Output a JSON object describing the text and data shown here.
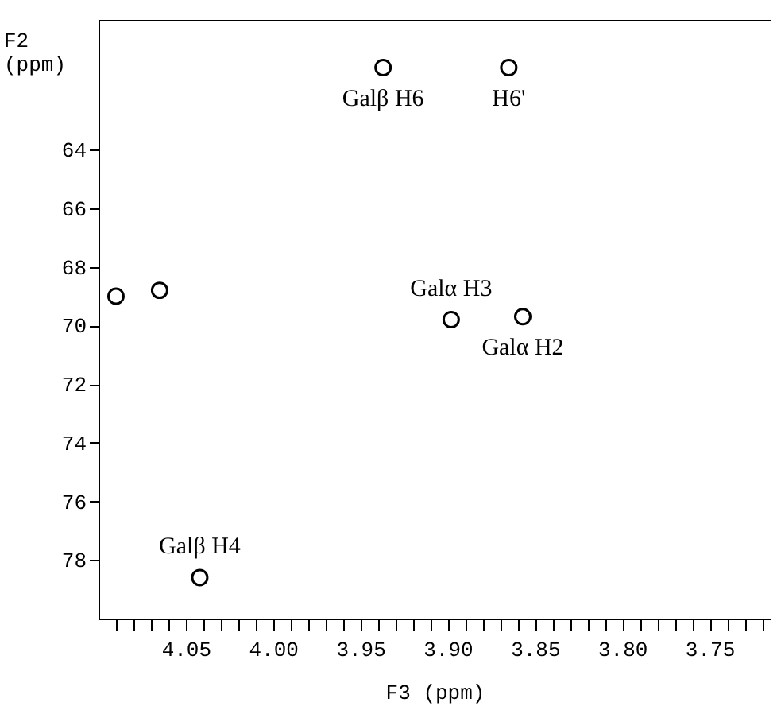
{
  "chart_data": {
    "type": "scatter",
    "xlabel": "F3 (ppm)",
    "ylabel": "F2 (ppm)",
    "x": [
      3.937,
      3.865,
      3.898,
      3.857,
      4.042,
      4.065,
      4.09
    ],
    "series": [
      {
        "color": "#000000",
        "values": [
          61.2,
          61.2,
          69.8,
          69.7,
          78.6,
          68.8,
          69.0
        ]
      }
    ],
    "marker": "circle",
    "xlim": [
      4.1,
      3.715
    ],
    "ylim": [
      80,
      59.6
    ],
    "xticks": [
      {
        "value": 4.09,
        "label": null
      },
      {
        "value": 4.08,
        "label": null
      },
      {
        "value": 4.07,
        "label": null
      },
      {
        "value": 4.06,
        "label": null
      },
      {
        "value": 4.05,
        "label": "4.05"
      },
      {
        "value": 4.04,
        "label": null
      },
      {
        "value": 4.03,
        "label": null
      },
      {
        "value": 4.02,
        "label": null
      },
      {
        "value": 4.01,
        "label": null
      },
      {
        "value": 4.0,
        "label": "4.00"
      },
      {
        "value": 3.99,
        "label": null
      },
      {
        "value": 3.98,
        "label": null
      },
      {
        "value": 3.97,
        "label": null
      },
      {
        "value": 3.96,
        "label": null
      },
      {
        "value": 3.95,
        "label": "3.95"
      },
      {
        "value": 3.94,
        "label": null
      },
      {
        "value": 3.93,
        "label": null
      },
      {
        "value": 3.92,
        "label": null
      },
      {
        "value": 3.91,
        "label": null
      },
      {
        "value": 3.9,
        "label": "3.90"
      },
      {
        "value": 3.89,
        "label": null
      },
      {
        "value": 3.88,
        "label": null
      },
      {
        "value": 3.87,
        "label": null
      },
      {
        "value": 3.86,
        "label": null
      },
      {
        "value": 3.85,
        "label": "3.85"
      },
      {
        "value": 3.84,
        "label": null
      },
      {
        "value": 3.83,
        "label": null
      },
      {
        "value": 3.82,
        "label": null
      },
      {
        "value": 3.81,
        "label": null
      },
      {
        "value": 3.8,
        "label": "3.80"
      },
      {
        "value": 3.79,
        "label": null
      },
      {
        "value": 3.78,
        "label": null
      },
      {
        "value": 3.77,
        "label": null
      },
      {
        "value": 3.76,
        "label": null
      },
      {
        "value": 3.75,
        "label": "3.75"
      },
      {
        "value": 3.74,
        "label": null
      },
      {
        "value": 3.73,
        "label": null
      },
      {
        "value": 3.72,
        "label": null
      }
    ],
    "yticks": [
      64,
      66,
      68,
      70,
      72,
      74,
      76,
      78
    ],
    "annotations": [
      {
        "text": "Galβ H6",
        "x": 3.937,
        "y": 61.2
      },
      {
        "text": "H6'",
        "x": 3.865,
        "y": 61.2
      },
      {
        "text": "Galα H3",
        "x": 3.898,
        "y": 69.8
      },
      {
        "text": "Galα H2",
        "x": 3.857,
        "y": 69.7
      },
      {
        "text": "Galβ H4",
        "x": 4.042,
        "y": 78.6
      }
    ]
  }
}
